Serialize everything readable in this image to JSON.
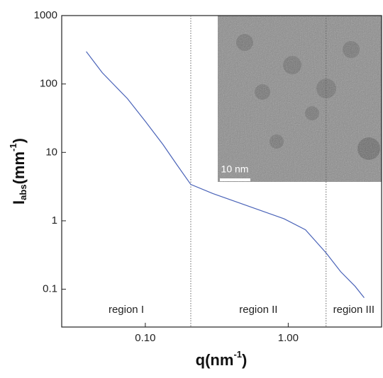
{
  "chart_data": {
    "type": "line",
    "x_label": {
      "main": "q(nm",
      "sup": "-1",
      "end": ")"
    },
    "y_label": {
      "main": "I",
      "sub": "abs",
      "unit": "(mm",
      "sup": "-1",
      "end": ")"
    },
    "xlog": true,
    "ylog": true,
    "xlim": [
      0.026,
      4.5
    ],
    "ylim": [
      0.028,
      1000
    ],
    "xticks": [
      {
        "value": 0.1,
        "label": "0.10"
      },
      {
        "value": 1,
        "label": "1.00"
      }
    ],
    "yticks": [
      0.1,
      1,
      10,
      100,
      1000
    ],
    "series": [
      {
        "color": "#4a63b8",
        "x": [
          0.0386,
          0.05,
          0.075,
          0.1,
          0.133,
          0.168,
          0.208,
          0.297,
          0.526,
          0.935,
          1.32,
          1.84,
          2.33,
          2.94,
          3.4
        ],
        "values": [
          298,
          146,
          61,
          28.5,
          13,
          6.4,
          3.4,
          2.5,
          1.64,
          1.07,
          0.74,
          0.34,
          0.18,
          0.11,
          0.075
        ]
      }
    ],
    "region_lines": [
      0.208,
      1.84
    ],
    "regions": [
      "region I",
      "region II",
      "region III"
    ],
    "inset_scale_label": "10 nm"
  }
}
